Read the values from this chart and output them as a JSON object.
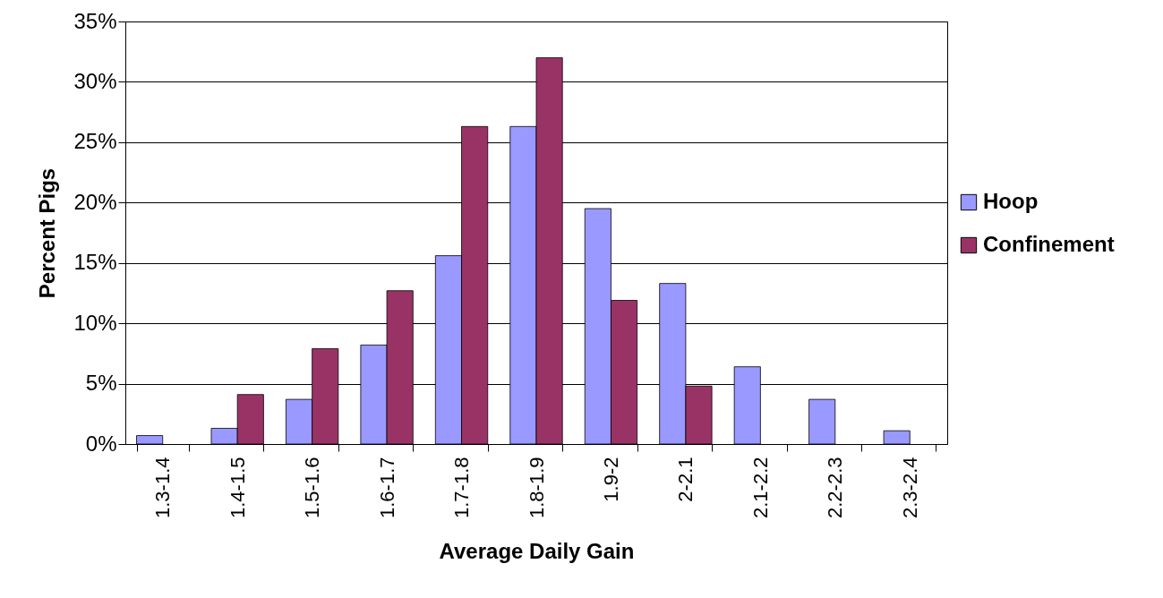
{
  "chart_data": {
    "type": "bar",
    "xlabel": "Average Daily Gain",
    "ylabel": "Percent Pigs",
    "categories": [
      "1.3-1.4",
      "1.4-1.5",
      "1.5-1.6",
      "1.6-1.7",
      "1.7-1.8",
      "1.8-1.9",
      "1.9-2",
      "2-2.1",
      "2.1-2.2",
      "2.2-2.3",
      "2.3-2.4"
    ],
    "series": [
      {
        "name": "Hoop",
        "color": "#9999ff",
        "values": [
          0.7,
          1.3,
          3.7,
          8.2,
          15.6,
          26.3,
          19.5,
          13.3,
          6.4,
          3.7,
          1.1
        ]
      },
      {
        "name": "Confinement",
        "color": "#993366",
        "values": [
          null,
          4.1,
          7.9,
          12.7,
          26.3,
          32.0,
          11.9,
          4.8,
          null,
          null,
          null
        ]
      }
    ],
    "ylim": [
      0,
      35
    ],
    "yticks": [
      {
        "value": 0,
        "label": "0%"
      },
      {
        "value": 5,
        "label": "5%"
      },
      {
        "value": 10,
        "label": "10%"
      },
      {
        "value": 15,
        "label": "15%"
      },
      {
        "value": 20,
        "label": "20%"
      },
      {
        "value": 25,
        "label": "25%"
      },
      {
        "value": 30,
        "label": "30%"
      },
      {
        "value": 35,
        "label": "35%"
      }
    ],
    "grid": "y",
    "legend": "right"
  }
}
